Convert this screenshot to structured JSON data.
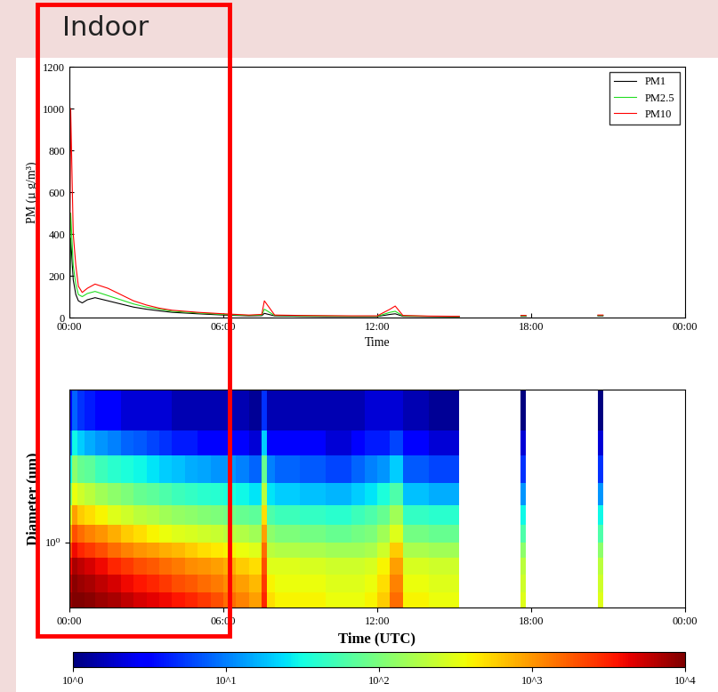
{
  "header": {
    "text": "Indoor"
  },
  "chart_data": [
    {
      "type": "line",
      "x_label": "Time",
      "y_label": "PM (μ g/m³)",
      "x": [
        0.0,
        0.05,
        0.15,
        0.25,
        0.35,
        0.5,
        0.7,
        1.0,
        1.5,
        2.0,
        2.5,
        3.0,
        3.5,
        4.0,
        5.0,
        6.0,
        7.0,
        7.5,
        7.6,
        8.0,
        9.0,
        10.0,
        11.0,
        12.0,
        12.5,
        12.7,
        13.0,
        14.0,
        15.0,
        15.2,
        16.5,
        17.6,
        17.8,
        19.0,
        20.6,
        20.8
      ],
      "series": [
        {
          "name": "PM1",
          "color": "#000000",
          "values": [
            10,
            380,
            180,
            110,
            80,
            70,
            85,
            95,
            80,
            65,
            50,
            40,
            32,
            25,
            18,
            12,
            8,
            9,
            20,
            8,
            6,
            5,
            5,
            5,
            15,
            18,
            6,
            5,
            4,
            4,
            null,
            6,
            6,
            null,
            8,
            8
          ]
        },
        {
          "name": "PM2.5",
          "color": "#22dd22",
          "values": [
            15,
            500,
            250,
            160,
            110,
            100,
            115,
            125,
            105,
            85,
            65,
            50,
            40,
            30,
            22,
            15,
            10,
            12,
            40,
            10,
            8,
            7,
            6,
            6,
            25,
            30,
            8,
            6,
            5,
            5,
            null,
            8,
            8,
            null,
            10,
            10
          ]
        },
        {
          "name": "PM10",
          "color": "#ff0000",
          "values": [
            20,
            1000,
            400,
            250,
            150,
            120,
            140,
            160,
            140,
            110,
            80,
            60,
            45,
            35,
            25,
            18,
            12,
            15,
            80,
            12,
            10,
            9,
            8,
            8,
            40,
            55,
            10,
            7,
            6,
            6,
            null,
            10,
            10,
            null,
            12,
            12
          ]
        }
      ],
      "xlim": [
        0,
        24
      ],
      "xticks": [
        {
          "value": 0,
          "label": "00:00"
        },
        {
          "value": 6,
          "label": "06:00"
        },
        {
          "value": 12,
          "label": "12:00"
        },
        {
          "value": 18,
          "label": "18:00"
        },
        {
          "value": 24,
          "label": "00:00"
        }
      ],
      "ylim": [
        0,
        1200
      ],
      "yticks": [
        0,
        200,
        400,
        600,
        800,
        1000,
        1200
      ],
      "legend": "upper right",
      "grid": false
    },
    {
      "type": "heatmap",
      "x_label": "Time (UTC)",
      "y_label": "Diameter (um)",
      "log": "y",
      "x_edges": [
        0,
        0.1,
        0.3,
        0.6,
        1,
        1.5,
        2,
        2.5,
        3,
        3.5,
        4,
        4.5,
        5,
        5.5,
        6,
        6.5,
        7,
        7.5,
        7.7,
        8,
        9,
        10,
        11,
        11.5,
        12,
        12.5,
        13,
        14,
        15,
        15.2,
        17.6,
        17.8,
        20.6,
        20.8,
        24
      ],
      "y_edges": [
        0.3,
        0.4,
        0.55,
        0.75,
        1.0,
        1.4,
        2.0,
        3.0,
        5.0,
        8.0,
        17
      ],
      "cells": [
        [
          8000,
          6000,
          4000,
          2000,
          800,
          300,
          100,
          30,
          8,
          3
        ],
        [
          10000,
          9000,
          7000,
          4000,
          2000,
          900,
          350,
          120,
          30,
          8
        ],
        [
          10000,
          8000,
          6000,
          3000,
          1500,
          600,
          250,
          80,
          20,
          5
        ],
        [
          9000,
          7000,
          5000,
          2500,
          1200,
          500,
          200,
          70,
          15,
          4
        ],
        [
          8000,
          6000,
          4000,
          2000,
          1000,
          400,
          150,
          50,
          12,
          3
        ],
        [
          7000,
          5000,
          3000,
          1500,
          800,
          300,
          120,
          40,
          10,
          3
        ],
        [
          6000,
          4000,
          2500,
          1200,
          600,
          250,
          100,
          35,
          8,
          2
        ],
        [
          5000,
          3500,
          2000,
          1000,
          500,
          200,
          80,
          30,
          7,
          2
        ],
        [
          4500,
          3000,
          1800,
          900,
          400,
          180,
          70,
          25,
          6,
          2
        ],
        [
          4000,
          2500,
          1500,
          800,
          350,
          150,
          60,
          20,
          5,
          2
        ],
        [
          3500,
          2000,
          1300,
          700,
          300,
          130,
          50,
          18,
          4,
          1.5
        ],
        [
          3000,
          1800,
          1100,
          600,
          280,
          120,
          45,
          15,
          4,
          1.5
        ],
        [
          2500,
          1500,
          1000,
          500,
          250,
          110,
          40,
          14,
          3,
          1.5
        ],
        [
          2000,
          1300,
          900,
          450,
          230,
          100,
          38,
          12,
          3,
          1.5
        ],
        [
          1500,
          1100,
          800,
          400,
          200,
          90,
          35,
          12,
          3,
          1.5
        ],
        [
          1200,
          900,
          600,
          350,
          180,
          80,
          30,
          10,
          3,
          1.5
        ],
        [
          900,
          700,
          500,
          300,
          150,
          70,
          25,
          8,
          2,
          1.2
        ],
        [
          3000,
          2500,
          2000,
          1500,
          900,
          500,
          200,
          80,
          20,
          5
        ],
        [
          500,
          400,
          300,
          200,
          120,
          60,
          25,
          10,
          3,
          1.5
        ],
        [
          400,
          350,
          300,
          180,
          100,
          50,
          20,
          8,
          3,
          1.5
        ],
        [
          400,
          350,
          280,
          170,
          90,
          45,
          18,
          7,
          3,
          1.5
        ],
        [
          350,
          300,
          250,
          150,
          80,
          40,
          16,
          6,
          2,
          1.5
        ],
        [
          350,
          300,
          250,
          150,
          90,
          50,
          20,
          8,
          3,
          1.5
        ],
        [
          400,
          350,
          280,
          170,
          100,
          60,
          25,
          10,
          4,
          2
        ],
        [
          600,
          500,
          400,
          250,
          150,
          80,
          35,
          12,
          4,
          2
        ],
        [
          1500,
          1200,
          900,
          600,
          300,
          150,
          60,
          20,
          6,
          2
        ],
        [
          400,
          350,
          280,
          170,
          90,
          45,
          18,
          7,
          3,
          1.5
        ],
        [
          350,
          300,
          250,
          150,
          80,
          40,
          15,
          6,
          2,
          1.2
        ],
        [
          350,
          300,
          250,
          150,
          80,
          40,
          15,
          6,
          2,
          1.2
        ],
        null,
        [
          300,
          250,
          200,
          120,
          60,
          30,
          12,
          5,
          2,
          1
        ],
        null,
        [
          300,
          250,
          200,
          120,
          60,
          30,
          12,
          5,
          2,
          1
        ],
        null
      ],
      "xlim": [
        0,
        24
      ],
      "xticks": [
        {
          "value": 0,
          "label": "00:00"
        },
        {
          "value": 6,
          "label": "06:00"
        },
        {
          "value": 12,
          "label": "12:00"
        },
        {
          "value": 18,
          "label": "18:00"
        },
        {
          "value": 24,
          "label": "00:00"
        }
      ],
      "ylim": [
        0.3,
        17
      ],
      "yticks": [
        {
          "value": 1,
          "label": "10⁰"
        }
      ],
      "colorbar": {
        "range": [
          1,
          10000
        ],
        "ticks": [
          {
            "value": 1,
            "label": "10^0"
          },
          {
            "value": 10,
            "label": "10^1"
          },
          {
            "value": 100,
            "label": "10^2"
          },
          {
            "value": 1000,
            "label": "10^3"
          },
          {
            "value": 10000,
            "label": "10^4"
          }
        ]
      }
    }
  ]
}
